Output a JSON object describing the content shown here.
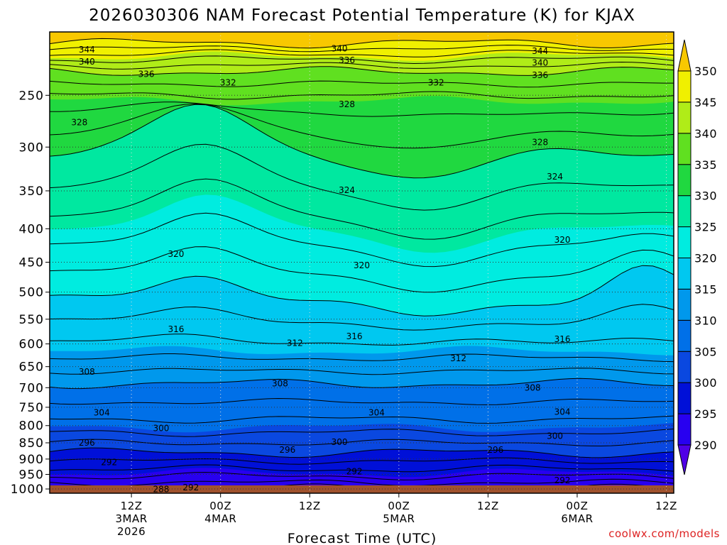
{
  "chart_data": {
    "type": "heatmap",
    "title": "2026030306 NAM Forecast Potential Temperature (K) for KJAX",
    "xlabel": "Forecast Time (UTC)",
    "ylabel": "",
    "credit": "coolwx.com/models",
    "y_axis": {
      "scale": "log-pressure",
      "ticks": [
        250,
        300,
        350,
        400,
        450,
        500,
        550,
        600,
        650,
        700,
        750,
        800,
        850,
        900,
        950,
        1000
      ],
      "range": [
        200,
        1015
      ],
      "grid": "dotted"
    },
    "x_axis": {
      "range_hours": [
        -5,
        79
      ],
      "ticks": [
        {
          "hours": 6,
          "lines": [
            "12Z",
            "3MAR",
            "2026"
          ]
        },
        {
          "hours": 18,
          "lines": [
            "00Z",
            "4MAR"
          ]
        },
        {
          "hours": 30,
          "lines": [
            "12Z"
          ]
        },
        {
          "hours": 42,
          "lines": [
            "00Z",
            "5MAR"
          ]
        },
        {
          "hours": 54,
          "lines": [
            "12Z"
          ]
        },
        {
          "hours": 66,
          "lines": [
            "00Z",
            "6MAR"
          ]
        },
        {
          "hours": 78,
          "lines": [
            "12Z"
          ]
        }
      ],
      "grid": "dotted"
    },
    "colorbar": {
      "levels": [
        290,
        295,
        300,
        305,
        310,
        315,
        320,
        325,
        330,
        335,
        340,
        345,
        350
      ],
      "colors": [
        "#5000e6",
        "#2800f0",
        "#0010d8",
        "#0a48e0",
        "#0070e8",
        "#0098ec",
        "#00c8f0",
        "#00ece0",
        "#00e8a0",
        "#20d840",
        "#60e020",
        "#b0ec18",
        "#f0f000",
        "#f8c800"
      ],
      "extend": "both"
    },
    "contour_labels": [
      {
        "value": 344,
        "hours": 0,
        "p": 213
      },
      {
        "value": 340,
        "hours": 0,
        "p": 222
      },
      {
        "value": 336,
        "hours": 8,
        "p": 232
      },
      {
        "value": 340,
        "hours": 34,
        "p": 212
      },
      {
        "value": 336,
        "hours": 35,
        "p": 221
      },
      {
        "value": 332,
        "hours": 19,
        "p": 239
      },
      {
        "value": 332,
        "hours": 47,
        "p": 239
      },
      {
        "value": 344,
        "hours": 61,
        "p": 214
      },
      {
        "value": 340,
        "hours": 61,
        "p": 223
      },
      {
        "value": 336,
        "hours": 61,
        "p": 233
      },
      {
        "value": 328,
        "hours": -1,
        "p": 275
      },
      {
        "value": 328,
        "hours": 35,
        "p": 258
      },
      {
        "value": 328,
        "hours": 61,
        "p": 295
      },
      {
        "value": 324,
        "hours": 35,
        "p": 349
      },
      {
        "value": 324,
        "hours": 63,
        "p": 333
      },
      {
        "value": 320,
        "hours": 12,
        "p": 437
      },
      {
        "value": 320,
        "hours": 37,
        "p": 455
      },
      {
        "value": 320,
        "hours": 64,
        "p": 416
      },
      {
        "value": 316,
        "hours": 12,
        "p": 570
      },
      {
        "value": 316,
        "hours": 36,
        "p": 584
      },
      {
        "value": 316,
        "hours": 64,
        "p": 590
      },
      {
        "value": 312,
        "hours": 28,
        "p": 598
      },
      {
        "value": 312,
        "hours": 50,
        "p": 631
      },
      {
        "value": 308,
        "hours": 0,
        "p": 662
      },
      {
        "value": 308,
        "hours": 26,
        "p": 690
      },
      {
        "value": 308,
        "hours": 60,
        "p": 700
      },
      {
        "value": 304,
        "hours": 2,
        "p": 764
      },
      {
        "value": 304,
        "hours": 39,
        "p": 764
      },
      {
        "value": 304,
        "hours": 64,
        "p": 762
      },
      {
        "value": 300,
        "hours": 10,
        "p": 808
      },
      {
        "value": 300,
        "hours": 34,
        "p": 848
      },
      {
        "value": 300,
        "hours": 63,
        "p": 830
      },
      {
        "value": 296,
        "hours": 0,
        "p": 850
      },
      {
        "value": 296,
        "hours": 27,
        "p": 872
      },
      {
        "value": 296,
        "hours": 55,
        "p": 872
      },
      {
        "value": 292,
        "hours": 3,
        "p": 910
      },
      {
        "value": 292,
        "hours": 36,
        "p": 940
      },
      {
        "value": 292,
        "hours": 64,
        "p": 970
      },
      {
        "value": 292,
        "hours": 14,
        "p": 995
      },
      {
        "value": 288,
        "hours": 10,
        "p": 1001
      }
    ]
  }
}
